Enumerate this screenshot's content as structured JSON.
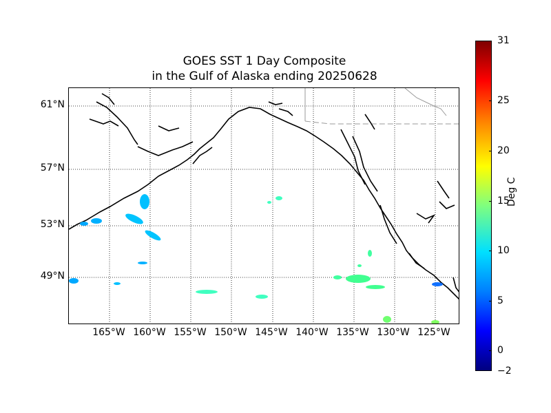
{
  "title": {
    "line1": "GOES SST 1 Day Composite",
    "line2": "in the Gulf of Alaska ending 20250628"
  },
  "map": {
    "lat_labels": [
      "61°N",
      "57°N",
      "53°N",
      "49°N"
    ],
    "lon_labels": [
      "165°W",
      "160°W",
      "155°W",
      "150°W",
      "145°W",
      "140°W",
      "135°W",
      "130°W",
      "125°W"
    ]
  },
  "colorbar": {
    "label": "Deg C",
    "ticks": [
      "31",
      "25",
      "20",
      "15",
      "10",
      "5",
      "0",
      "−2"
    ],
    "range": [
      -2,
      31
    ]
  }
}
